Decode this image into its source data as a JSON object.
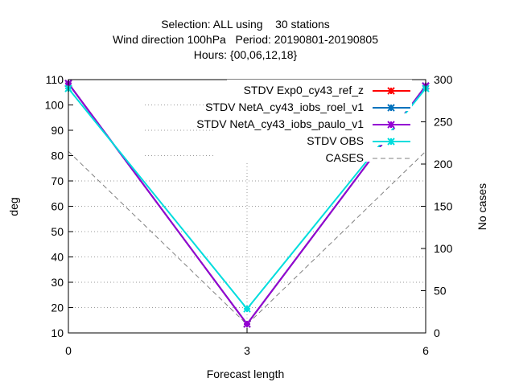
{
  "chart_data": {
    "type": "line",
    "title": [
      "Selection: ALL using    30 stations",
      "Wind direction 100hPa   Period: 20190801-20190805",
      "Hours: {00,06,12,18}"
    ],
    "xlabel": "Forecast length",
    "ylabel": "deg",
    "y2label": "No cases",
    "x": [
      0,
      3,
      6
    ],
    "xlim": [
      0,
      6
    ],
    "ylim": [
      10,
      110
    ],
    "y2lim": [
      0,
      300
    ],
    "x_ticks": [
      "0",
      "3",
      "6"
    ],
    "y_ticks": [
      "10",
      "20",
      "30",
      "40",
      "50",
      "60",
      "70",
      "80",
      "90",
      "100",
      "110"
    ],
    "y2_ticks": [
      "0",
      "50",
      "100",
      "150",
      "200",
      "250",
      "300"
    ],
    "grid": true,
    "legend_position": "top-right",
    "series": [
      {
        "name": "STDV Exp0_cy43_ref_z",
        "color": "#ff0000",
        "values": [
          108.5,
          13.5,
          107.5
        ]
      },
      {
        "name": "STDV NetA_cy43_iobs_roel_v1",
        "color": "#0072bd",
        "values": [
          108.5,
          13.5,
          107.5
        ]
      },
      {
        "name": "STDV NetA_cy43_iobs_paulo_v1",
        "color": "#9400d3",
        "values": [
          108.5,
          13.5,
          107.5
        ]
      },
      {
        "name": "STDV OBS",
        "color": "#00dddd",
        "values": [
          106.5,
          19.5,
          106.5
        ]
      }
    ],
    "cases": {
      "name": "CASES",
      "color": "#808080",
      "axis": "y2",
      "values": [
        215,
        10,
        215
      ]
    }
  }
}
